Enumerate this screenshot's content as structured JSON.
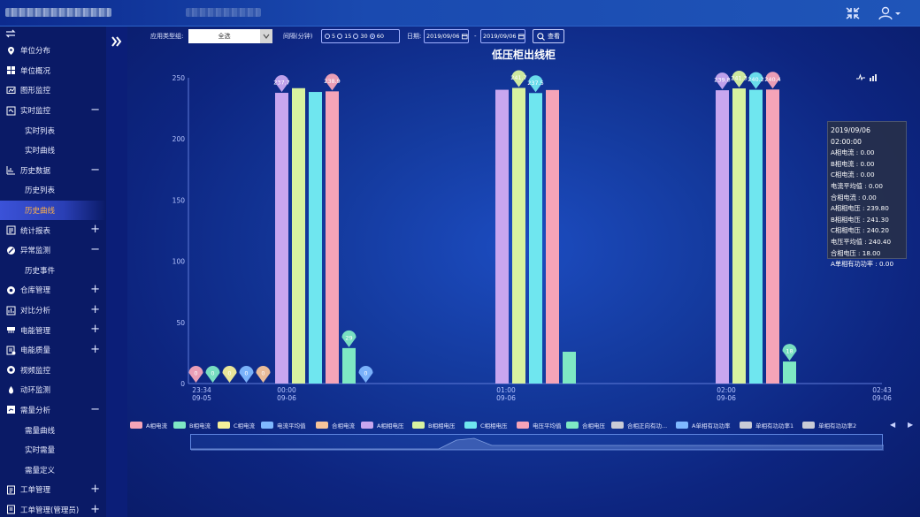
{
  "topbar": {
    "collapse_icon": "compress-icon",
    "user_icon": "user-icon"
  },
  "sidebar": {
    "items": [
      {
        "label": "单位分布",
        "icon": "location-icon",
        "sign": ""
      },
      {
        "label": "单位概况",
        "icon": "grid-icon",
        "sign": ""
      },
      {
        "label": "图形监控",
        "icon": "monitor-icon",
        "sign": ""
      },
      {
        "label": "实时监控",
        "icon": "realtime-icon",
        "sign": "−"
      },
      {
        "label": "实时列表",
        "sub": true
      },
      {
        "label": "实时曲线",
        "sub": true
      },
      {
        "label": "历史数据",
        "icon": "history-icon",
        "sign": "−"
      },
      {
        "label": "历史列表",
        "sub": true
      },
      {
        "label": "历史曲线",
        "sub": true,
        "active": true
      },
      {
        "label": "统计报表",
        "icon": "report-icon",
        "sign": "+"
      },
      {
        "label": "异常监测",
        "icon": "alert-icon",
        "sign": "−"
      },
      {
        "label": "历史事件",
        "sub": true
      },
      {
        "label": "仓库管理",
        "icon": "warehouse-icon",
        "sign": "+"
      },
      {
        "label": "对比分析",
        "icon": "compare-icon",
        "sign": "+"
      },
      {
        "label": "电能管理",
        "icon": "energy-icon",
        "sign": "+"
      },
      {
        "label": "电能质量",
        "icon": "quality-icon",
        "sign": "+"
      },
      {
        "label": "视频监控",
        "icon": "camera-icon",
        "sign": ""
      },
      {
        "label": "动环监测",
        "icon": "env-icon",
        "sign": ""
      },
      {
        "label": "需量分析",
        "icon": "demand-icon",
        "sign": "−"
      },
      {
        "label": "需量曲线",
        "sub": true
      },
      {
        "label": "实时需量",
        "sub": true
      },
      {
        "label": "需量定义",
        "sub": true
      },
      {
        "label": "工单管理",
        "icon": "workorder-icon",
        "sign": "+"
      },
      {
        "label": "工单管理(管理员)",
        "icon": "admin-icon",
        "sign": "+"
      }
    ]
  },
  "filters": {
    "type_label": "应用类型组:",
    "type_value": "全选",
    "interval_label": "间隔(分钟)",
    "interval_options": [
      "5",
      "15",
      "30",
      "60"
    ],
    "interval_selected": "60",
    "date_label": "日期:",
    "date_from": "2019/09/06",
    "date_sep": "-",
    "date_to": "2019/09/06",
    "query_label": "查看"
  },
  "chart_data": {
    "type": "bar",
    "title": "低压柜出线柜",
    "ylim": [
      0,
      250
    ],
    "yticks": [
      "250",
      "200",
      "150",
      "100",
      "50",
      "0"
    ],
    "x_ticks": [
      {
        "time": "23:34",
        "date": "09-05"
      },
      {
        "time": "00:00",
        "date": "09-06"
      },
      {
        "time": "01:00",
        "date": "09-06"
      },
      {
        "time": "02:00",
        "date": "09-06"
      },
      {
        "time": "02:43",
        "date": "09-06"
      }
    ],
    "groups": [
      {
        "time": "23:34",
        "bars": [
          {
            "series": "A相电流",
            "value": 0,
            "pin": "0"
          },
          {
            "series": "B相电流",
            "value": 0,
            "pin": "0"
          },
          {
            "series": "C相电流",
            "value": 0,
            "pin": "0"
          },
          {
            "series": "电流平均值",
            "value": 0,
            "pin": "0"
          },
          {
            "series": "合相电流",
            "value": 0,
            "pin": "0"
          }
        ]
      },
      {
        "time": "00:00",
        "bars": [
          {
            "series": "A相相电压",
            "value": 237.7,
            "pin": "237.7"
          },
          {
            "series": "B相相电压",
            "value": 241.5,
            "pin": ""
          },
          {
            "series": "C相相电压",
            "value": 238.4,
            "pin": ""
          },
          {
            "series": "电压平均值",
            "value": 238.9,
            "pin": "238.9"
          },
          {
            "series": "合相电压",
            "value": 29,
            "pin": "29"
          },
          {
            "series": "电流平均值",
            "value": 0,
            "pin": "0"
          }
        ]
      },
      {
        "time": "01:00",
        "bars": [
          {
            "series": "A相相电压",
            "value": 240.2,
            "pin": ""
          },
          {
            "series": "B相相电压",
            "value": 241.7,
            "pin": "241.7"
          },
          {
            "series": "C相相电压",
            "value": 237.5,
            "pin": "237.5"
          },
          {
            "series": "电压平均值",
            "value": 240,
            "pin": ""
          },
          {
            "series": "合相电压",
            "value": 26,
            "pin": ""
          }
        ]
      },
      {
        "time": "02:00",
        "bars": [
          {
            "series": "A相相电压",
            "value": 239.8,
            "pin": "239.8"
          },
          {
            "series": "B相相电压",
            "value": 241.3,
            "pin": "241.3"
          },
          {
            "series": "C相相电压",
            "value": 240.2,
            "pin": "240.2"
          },
          {
            "series": "电压平均值",
            "value": 240.4,
            "pin": "240.4"
          },
          {
            "series": "合相电压",
            "value": 18,
            "pin": "18"
          }
        ]
      }
    ],
    "series_colors": {
      "A相电流": "#f5a4b8",
      "B相电流": "#7ee8c4",
      "C相电流": "#f5ef9a",
      "电流平均值": "#7fb8ff",
      "合相电流": "#f6c49a",
      "A相相电压": "#c8a6ef",
      "B相相电压": "#d8f2a0",
      "C相相电压": "#6fe6ef",
      "电压平均值": "#f5a4b8",
      "合相电压": "#7ee8c4"
    },
    "legend": [
      {
        "label": "A相电流",
        "color": "#f5a4b8"
      },
      {
        "label": "B相电流",
        "color": "#7ee8c4"
      },
      {
        "label": "C相电流",
        "color": "#f5ef9a"
      },
      {
        "label": "电流平均值",
        "color": "#7fb8ff"
      },
      {
        "label": "合相电流",
        "color": "#f6c49a"
      },
      {
        "label": "A相相电压",
        "color": "#c8a6ef"
      },
      {
        "label": "B相相电压",
        "color": "#d8f2a0"
      },
      {
        "label": "C相相电压",
        "color": "#6fe6ef"
      },
      {
        "label": "电压平均值",
        "color": "#f5a4b8"
      },
      {
        "label": "合相电压",
        "color": "#7ee8c4"
      },
      {
        "label": "合相正向有功...",
        "color": "#c9cbd6"
      },
      {
        "label": "A单相有功功率",
        "color": "#7fb8ff"
      },
      {
        "label": "单相有功功率1",
        "color": "#c9cbd6"
      },
      {
        "label": "单相有功功率2",
        "color": "#c9cbd6"
      }
    ]
  },
  "tooltip": {
    "lines": [
      "2019/09/06 02:00:00",
      "A相电流 : 0.00",
      "B相电流 : 0.00",
      "C相电流 : 0.00",
      "电流平均值 : 0.00",
      "合相电流 : 0.00",
      "A相相电压 : 239.80",
      "B相相电压 : 241.30",
      "C相相电压 : 240.20",
      "电压平均值 : 240.40",
      "合相电压 : 18.00",
      "A单相有功功率 : 0.00"
    ]
  }
}
